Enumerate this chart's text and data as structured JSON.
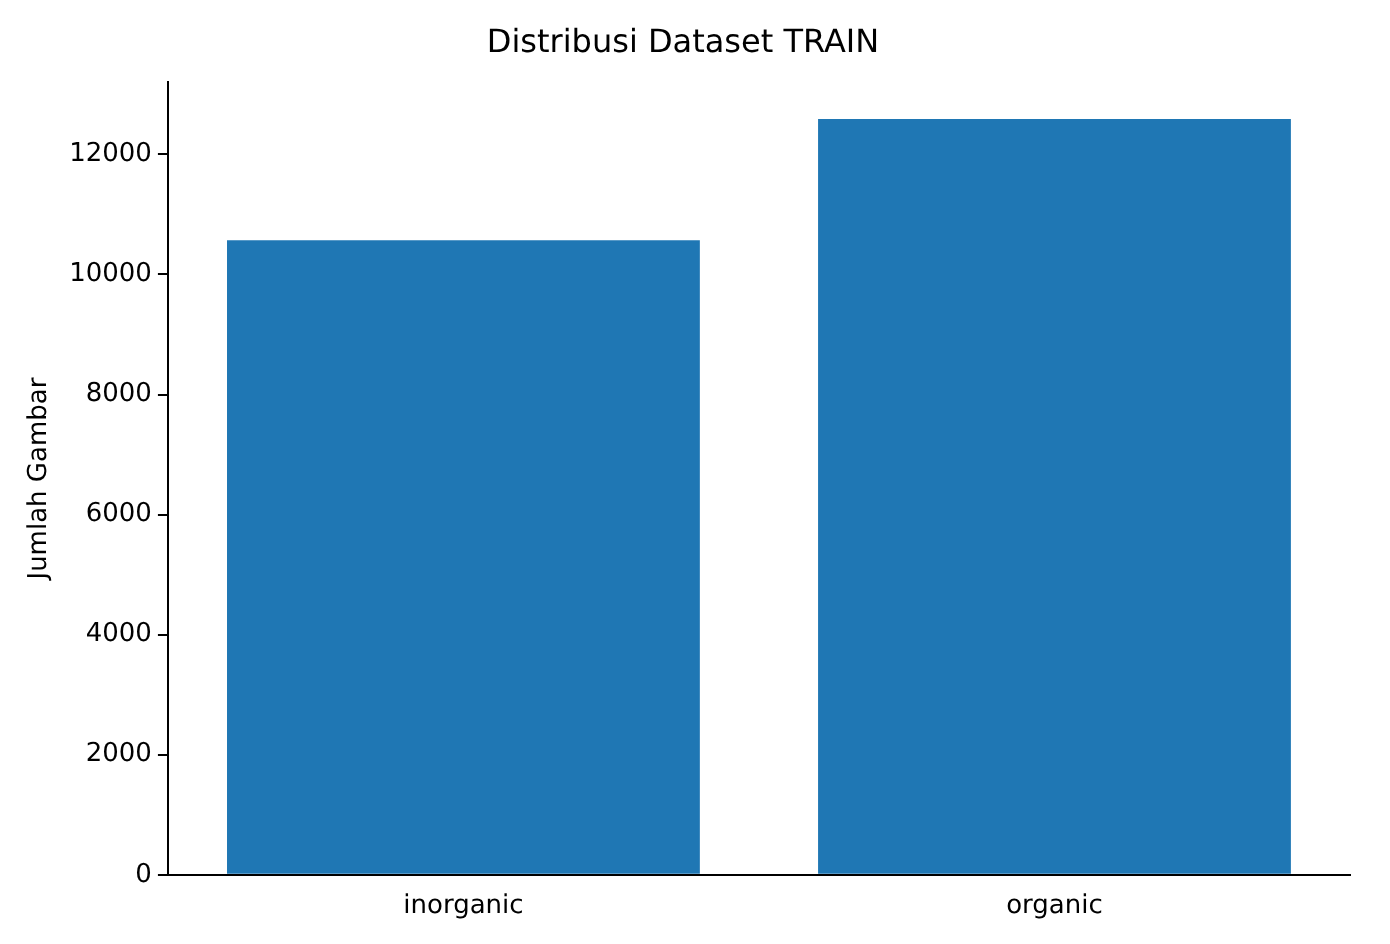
{
  "chart_data": {
    "type": "bar",
    "title": "Distribusi Dataset TRAIN",
    "ylabel": "Jumlah Gambar",
    "categories": [
      "inorganic",
      "organic"
    ],
    "values": [
      10570,
      12590
    ],
    "color": "#1f77b4",
    "ylim": [
      0,
      13200
    ],
    "yticks": [
      0,
      2000,
      4000,
      6000,
      8000,
      10000,
      12000
    ],
    "grid": false,
    "legend": false
  }
}
